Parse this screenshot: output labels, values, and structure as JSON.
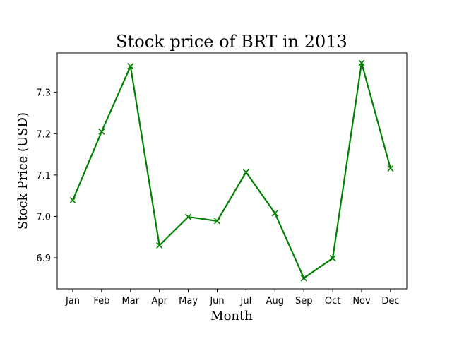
{
  "chart_data": {
    "type": "line",
    "title": "Stock price of BRT in 2013",
    "xlabel": "Month",
    "ylabel": "Stock Price (USD)",
    "categories": [
      "Jan",
      "Feb",
      "Mar",
      "Apr",
      "May",
      "Jun",
      "Jul",
      "Aug",
      "Sep",
      "Oct",
      "Nov",
      "Dec"
    ],
    "series": [
      {
        "values": [
          7.039,
          7.205,
          7.363,
          6.93,
          6.999,
          6.989,
          7.107,
          7.008,
          6.851,
          6.899,
          7.371,
          7.116
        ],
        "color": "#008000",
        "marker": "x"
      }
    ],
    "yticks": [
      6.9,
      7.0,
      7.1,
      7.2,
      7.3
    ],
    "ytick_labels": [
      "6.9",
      "7.0",
      "7.1",
      "7.2",
      "7.3"
    ],
    "ylim": [
      6.825,
      7.395
    ],
    "grid": false,
    "legend": false
  }
}
